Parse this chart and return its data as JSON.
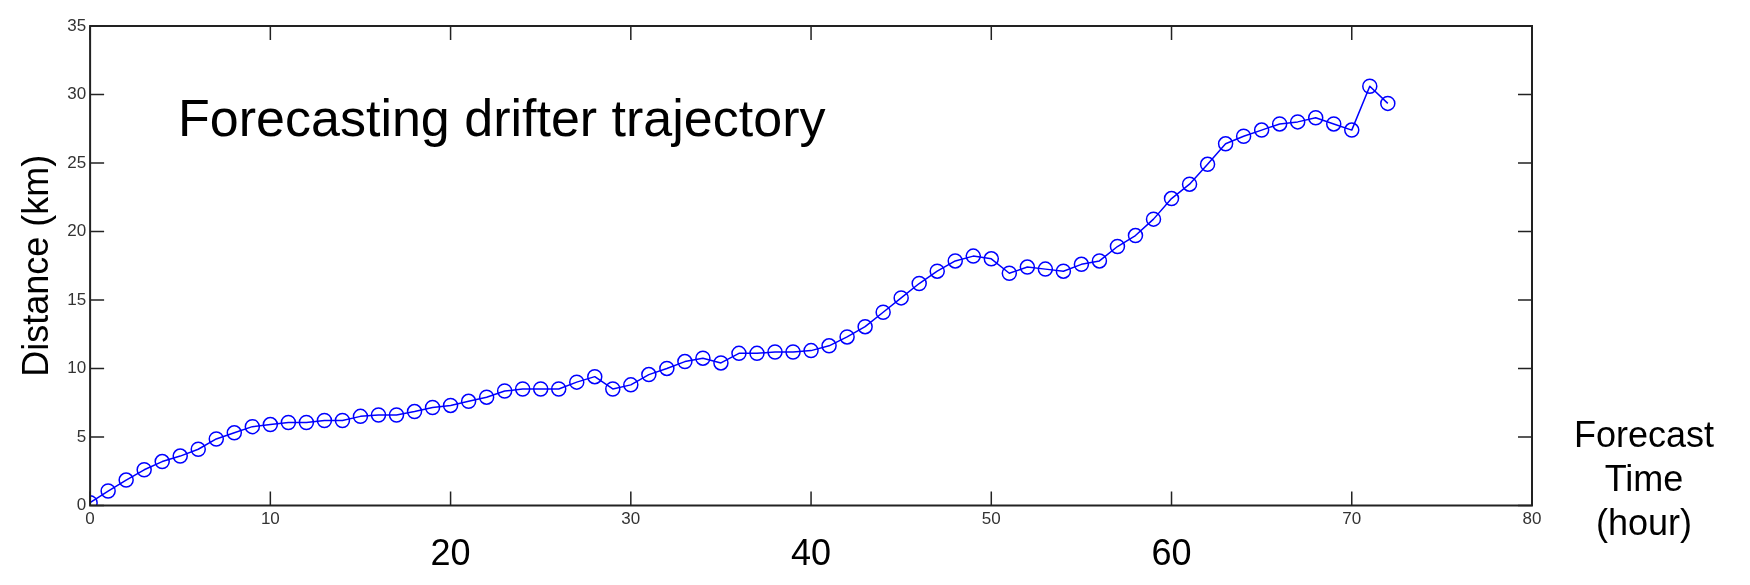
{
  "chart_data": {
    "type": "line",
    "title": "Forecasting drifter trajectory",
    "xlabel": "Forecast\nTime\n(hour)",
    "ylabel": "Distance (km)",
    "x": [
      0,
      1,
      2,
      3,
      4,
      5,
      6,
      7,
      8,
      9,
      10,
      11,
      12,
      13,
      14,
      15,
      16,
      17,
      18,
      19,
      20,
      21,
      22,
      23,
      24,
      25,
      26,
      27,
      28,
      29,
      30,
      31,
      32,
      33,
      34,
      35,
      36,
      37,
      38,
      39,
      40,
      41,
      42,
      43,
      44,
      45,
      46,
      47,
      48,
      49,
      50,
      51,
      52,
      53,
      54,
      55,
      56,
      57,
      58,
      59,
      60,
      61,
      62,
      63,
      64,
      65,
      66,
      67,
      68,
      69,
      70,
      71,
      72
    ],
    "series": [
      {
        "color": "#0000ff",
        "values": [
          0.2,
          1.05,
          1.85,
          2.6,
          3.2,
          3.6,
          4.1,
          4.85,
          5.3,
          5.75,
          5.9,
          6.05,
          6.05,
          6.2,
          6.2,
          6.5,
          6.6,
          6.6,
          6.85,
          7.15,
          7.3,
          7.6,
          7.9,
          8.35,
          8.5,
          8.5,
          8.5,
          9.0,
          9.4,
          8.5,
          8.8,
          9.55,
          10.0,
          10.5,
          10.75,
          10.4,
          11.1,
          11.1,
          11.2,
          11.2,
          11.3,
          11.65,
          12.3,
          13.05,
          14.1,
          15.15,
          16.2,
          17.1,
          17.85,
          18.2,
          18.0,
          16.95,
          17.4,
          17.25,
          17.1,
          17.6,
          17.85,
          18.9,
          19.7,
          20.9,
          22.4,
          23.45,
          24.9,
          26.4,
          26.95,
          27.4,
          27.85,
          28.0,
          28.3,
          27.85,
          27.4,
          30.6,
          29.35
        ]
      }
    ],
    "xlim": [
      0,
      80
    ],
    "xticks": [
      0,
      10,
      {
        "value": 20,
        "label": null
      },
      30,
      {
        "value": 40,
        "label": null
      },
      50,
      {
        "value": 60,
        "label": null
      },
      70,
      80
    ],
    "x2lim": [
      0,
      80
    ],
    "x2ticks": [
      20,
      40,
      60
    ],
    "ylim": [
      0,
      35
    ],
    "yticks": [
      0,
      5,
      10,
      15,
      20,
      25,
      30,
      35
    ],
    "grid": false,
    "legend": false,
    "marker": "circle",
    "line_style": "solid"
  }
}
